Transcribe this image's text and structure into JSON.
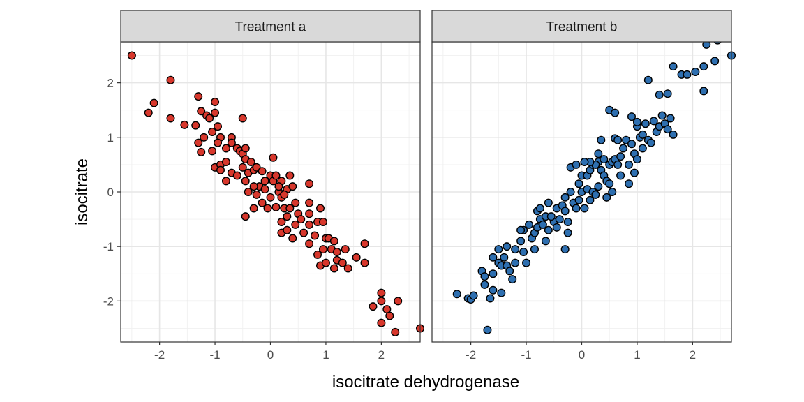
{
  "chart_data": {
    "type": "scatter",
    "xlabel": "isocitrate dehydrogenase",
    "ylabel": "isocitrate",
    "xlim": [
      -2.7,
      2.7
    ],
    "ylim": [
      -2.75,
      2.75
    ],
    "x_ticks": [
      -2,
      -1,
      0,
      1,
      2
    ],
    "y_ticks": [
      -2,
      -1,
      0,
      1,
      2
    ],
    "x_tick_labels": [
      "-2",
      "-1",
      "0",
      "1",
      "2"
    ],
    "y_tick_labels": [
      "-2",
      "-1",
      "0",
      "1",
      "2"
    ],
    "grid": true,
    "legend": "none",
    "facets": [
      {
        "label": "Treatment a",
        "color": "#D7372C",
        "points": [
          [
            -2.5,
            2.5
          ],
          [
            -1.8,
            2.05
          ],
          [
            -2.1,
            1.63
          ],
          [
            -2.2,
            1.45
          ],
          [
            -1.8,
            1.35
          ],
          [
            -1.55,
            1.23
          ],
          [
            -1.3,
            1.75
          ],
          [
            -1.25,
            1.48
          ],
          [
            -1.15,
            1.4
          ],
          [
            -1.1,
            1.35
          ],
          [
            -1.35,
            1.22
          ],
          [
            -1.2,
            1.0
          ],
          [
            -1.3,
            0.9
          ],
          [
            -1.25,
            0.73
          ],
          [
            -1.0,
            1.65
          ],
          [
            -1.0,
            1.45
          ],
          [
            -1.05,
            1.1
          ],
          [
            -0.95,
            1.2
          ],
          [
            -0.9,
            1.0
          ],
          [
            -1.05,
            0.75
          ],
          [
            -0.95,
            0.9
          ],
          [
            -0.8,
            0.8
          ],
          [
            -1.0,
            0.45
          ],
          [
            -0.9,
            0.5
          ],
          [
            -0.9,
            0.4
          ],
          [
            -0.8,
            0.55
          ],
          [
            -0.7,
            1.0
          ],
          [
            -0.7,
            0.9
          ],
          [
            -0.6,
            0.8
          ],
          [
            -0.8,
            0.2
          ],
          [
            -0.7,
            0.35
          ],
          [
            -0.55,
            0.75
          ],
          [
            -0.5,
            0.7
          ],
          [
            -0.45,
            0.8
          ],
          [
            -0.5,
            0.45
          ],
          [
            -0.45,
            0.6
          ],
          [
            -0.35,
            0.55
          ],
          [
            -0.4,
            0.35
          ],
          [
            -0.5,
            1.35
          ],
          [
            -0.6,
            0.3
          ],
          [
            -0.45,
            0.2
          ],
          [
            -0.3,
            0.4
          ],
          [
            -0.25,
            0.45
          ],
          [
            -0.15,
            0.38
          ],
          [
            -0.1,
            0.2
          ],
          [
            -0.2,
            0.1
          ],
          [
            -0.3,
            0.1
          ],
          [
            -0.4,
            0.0
          ],
          [
            -0.25,
            -0.05
          ],
          [
            -0.1,
            0.05
          ],
          [
            0.0,
            0.3
          ],
          [
            0.05,
            0.2
          ],
          [
            0.1,
            0.3
          ],
          [
            0.05,
            0.63
          ],
          [
            0.15,
            0.0
          ],
          [
            0.2,
            0.2
          ],
          [
            0.15,
            0.1
          ],
          [
            0.0,
            -0.1
          ],
          [
            -0.15,
            -0.2
          ],
          [
            -0.05,
            -0.3
          ],
          [
            -0.3,
            -0.3
          ],
          [
            -0.45,
            -0.45
          ],
          [
            0.1,
            -0.28
          ],
          [
            0.2,
            -0.1
          ],
          [
            0.25,
            -0.3
          ],
          [
            0.3,
            0.05
          ],
          [
            0.35,
            0.3
          ],
          [
            0.4,
            0.1
          ],
          [
            0.25,
            -0.05
          ],
          [
            0.35,
            -0.3
          ],
          [
            0.45,
            -0.2
          ],
          [
            0.5,
            -0.4
          ],
          [
            0.3,
            -0.45
          ],
          [
            0.2,
            -0.55
          ],
          [
            0.2,
            -0.75
          ],
          [
            0.3,
            -0.7
          ],
          [
            0.45,
            -0.6
          ],
          [
            0.4,
            -0.85
          ],
          [
            0.55,
            -0.5
          ],
          [
            0.7,
            -0.4
          ],
          [
            0.7,
            -0.2
          ],
          [
            0.7,
            -0.6
          ],
          [
            0.6,
            -0.75
          ],
          [
            0.7,
            -0.95
          ],
          [
            0.8,
            -0.8
          ],
          [
            0.85,
            -0.55
          ],
          [
            0.9,
            -0.3
          ],
          [
            0.95,
            -0.55
          ],
          [
            1.0,
            -0.85
          ],
          [
            1.05,
            -0.85
          ],
          [
            0.95,
            -1.05
          ],
          [
            0.85,
            -1.15
          ],
          [
            0.9,
            -1.35
          ],
          [
            1.0,
            -1.3
          ],
          [
            1.1,
            -1.05
          ],
          [
            1.15,
            -0.9
          ],
          [
            1.2,
            -1.1
          ],
          [
            1.2,
            -1.25
          ],
          [
            0.7,
            0.15
          ],
          [
            1.35,
            -1.05
          ],
          [
            1.3,
            -1.3
          ],
          [
            1.15,
            -1.4
          ],
          [
            1.4,
            -1.4
          ],
          [
            1.55,
            -1.2
          ],
          [
            1.7,
            -0.95
          ],
          [
            1.7,
            -1.3
          ],
          [
            2.0,
            -1.85
          ],
          [
            2.0,
            -2.0
          ],
          [
            1.85,
            -2.1
          ],
          [
            2.1,
            -2.15
          ],
          [
            2.3,
            -2.0
          ],
          [
            2.15,
            -2.27
          ],
          [
            2.0,
            -2.4
          ],
          [
            2.25,
            -2.57
          ],
          [
            2.7,
            -2.5
          ]
        ]
      },
      {
        "label": "Treatment b",
        "color": "#2E6FB0",
        "points": [
          [
            -2.25,
            -1.87
          ],
          [
            -2.05,
            -1.95
          ],
          [
            -2.0,
            -1.97
          ],
          [
            -1.95,
            -1.9
          ],
          [
            -1.8,
            -1.45
          ],
          [
            -1.75,
            -1.55
          ],
          [
            -1.75,
            -1.7
          ],
          [
            -1.65,
            -1.95
          ],
          [
            -1.6,
            -1.8
          ],
          [
            -1.7,
            -2.53
          ],
          [
            -1.6,
            -1.2
          ],
          [
            -1.5,
            -1.05
          ],
          [
            -1.5,
            -1.3
          ],
          [
            -1.45,
            -1.35
          ],
          [
            -1.45,
            -1.85
          ],
          [
            -1.4,
            -1.2
          ],
          [
            -1.35,
            -1.35
          ],
          [
            -1.3,
            -1.45
          ],
          [
            -1.25,
            -1.6
          ],
          [
            -1.2,
            -1.05
          ],
          [
            -1.2,
            -1.3
          ],
          [
            -1.1,
            -0.9
          ],
          [
            -1.05,
            -1.1
          ],
          [
            -1.0,
            -1.3
          ],
          [
            -1.05,
            -0.7
          ],
          [
            -0.95,
            -0.6
          ],
          [
            -0.9,
            -0.85
          ],
          [
            -0.85,
            -1.05
          ],
          [
            -0.85,
            -0.75
          ],
          [
            -0.8,
            -0.65
          ],
          [
            -0.8,
            -0.35
          ],
          [
            -0.75,
            -0.5
          ],
          [
            -0.7,
            -0.6
          ],
          [
            -0.65,
            -0.9
          ],
          [
            -0.6,
            -0.7
          ],
          [
            -0.5,
            -0.55
          ],
          [
            -0.45,
            -0.65
          ],
          [
            -0.45,
            -0.3
          ],
          [
            -0.4,
            -0.5
          ],
          [
            -0.35,
            -0.25
          ],
          [
            -0.3,
            -0.35
          ],
          [
            -0.25,
            -0.55
          ],
          [
            -0.3,
            -0.1
          ],
          [
            -0.2,
            0.0
          ],
          [
            -0.15,
            -0.2
          ],
          [
            -0.1,
            -0.3
          ],
          [
            -0.25,
            -0.75
          ],
          [
            -0.3,
            -1.05
          ],
          [
            -0.05,
            -0.15
          ],
          [
            0.0,
            0.0
          ],
          [
            0.05,
            -0.3
          ],
          [
            -0.05,
            0.15
          ],
          [
            0.1,
            0.05
          ],
          [
            0.15,
            -0.15
          ],
          [
            0.2,
            0.0
          ],
          [
            0.25,
            -0.05
          ],
          [
            0.3,
            0.1
          ],
          [
            0.0,
            0.3
          ],
          [
            0.1,
            0.3
          ],
          [
            0.15,
            0.4
          ],
          [
            0.2,
            0.5
          ],
          [
            0.3,
            0.55
          ],
          [
            0.35,
            0.4
          ],
          [
            0.4,
            0.3
          ],
          [
            0.45,
            0.2
          ],
          [
            0.5,
            0.15
          ],
          [
            0.55,
            0.0
          ],
          [
            0.4,
            0.6
          ],
          [
            0.5,
            0.5
          ],
          [
            0.55,
            0.55
          ],
          [
            0.6,
            0.6
          ],
          [
            0.65,
            0.5
          ],
          [
            0.7,
            0.65
          ],
          [
            0.75,
            0.8
          ],
          [
            0.6,
            0.98
          ],
          [
            0.65,
            0.95
          ],
          [
            0.8,
            0.95
          ],
          [
            0.9,
            0.88
          ],
          [
            0.85,
            0.5
          ],
          [
            0.95,
            0.7
          ],
          [
            1.0,
            0.6
          ],
          [
            1.1,
            0.8
          ],
          [
            1.0,
            1.2
          ],
          [
            0.9,
            1.38
          ],
          [
            1.0,
            1.28
          ],
          [
            1.05,
            1.0
          ],
          [
            1.15,
            1.25
          ],
          [
            1.1,
            1.05
          ],
          [
            1.2,
            0.95
          ],
          [
            1.25,
            0.9
          ],
          [
            1.3,
            1.3
          ],
          [
            1.35,
            1.1
          ],
          [
            1.4,
            1.2
          ],
          [
            1.45,
            1.4
          ],
          [
            1.5,
            1.25
          ],
          [
            1.55,
            1.15
          ],
          [
            1.6,
            1.35
          ],
          [
            1.65,
            1.05
          ],
          [
            1.2,
            2.05
          ],
          [
            1.4,
            1.78
          ],
          [
            1.55,
            1.8
          ],
          [
            1.65,
            2.3
          ],
          [
            1.8,
            2.15
          ],
          [
            1.9,
            2.15
          ],
          [
            2.05,
            2.2
          ],
          [
            2.2,
            2.3
          ],
          [
            2.2,
            1.85
          ],
          [
            2.25,
            2.7
          ],
          [
            2.4,
            2.4
          ],
          [
            2.45,
            2.78
          ],
          [
            2.7,
            2.5
          ],
          [
            0.5,
            1.5
          ],
          [
            0.6,
            1.45
          ],
          [
            0.3,
            0.7
          ],
          [
            0.35,
            0.95
          ],
          [
            0.25,
            0.5
          ],
          [
            0.15,
            0.55
          ],
          [
            -0.2,
            0.45
          ],
          [
            -0.1,
            0.5
          ],
          [
            0.45,
            -0.1
          ],
          [
            0.7,
            0.3
          ],
          [
            0.85,
            0.15
          ],
          [
            0.95,
            0.35
          ],
          [
            -0.6,
            -0.2
          ],
          [
            -0.65,
            -0.45
          ],
          [
            -0.75,
            -0.3
          ],
          [
            -1.1,
            -0.7
          ],
          [
            -1.35,
            -1.0
          ],
          [
            -1.6,
            -1.5
          ],
          [
            -0.55,
            -0.45
          ],
          [
            0.05,
            0.55
          ]
        ]
      }
    ]
  }
}
